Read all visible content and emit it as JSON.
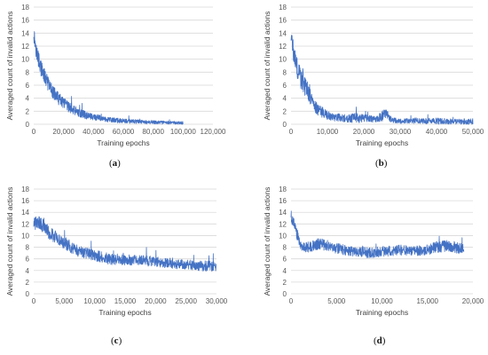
{
  "chart_data": [
    {
      "id": "a",
      "type": "line",
      "caption": "a",
      "xlabel": "Training epochs",
      "ylabel": "Averaged count of invalid actions",
      "xlim": [
        0,
        120000
      ],
      "ylim": [
        0,
        18
      ],
      "xticks": [
        "0",
        "20,000",
        "40,000",
        "60,000",
        "80,000",
        "100,000",
        "120,000"
      ],
      "yticks": [
        "0",
        "2",
        "4",
        "6",
        "8",
        "10",
        "12",
        "14",
        "16",
        "18"
      ],
      "grid": true,
      "color": "#4472c4",
      "series": [
        {
          "x": [
            0,
            2000,
            5000,
            10000,
            15000,
            20000,
            25000,
            30000,
            35000,
            40000,
            50000,
            60000,
            70000,
            80000,
            90000,
            100000
          ],
          "y": [
            14,
            11,
            8.5,
            6,
            4.3,
            3.2,
            2.4,
            1.8,
            1.4,
            1.1,
            0.7,
            0.5,
            0.4,
            0.3,
            0.25,
            0.2
          ],
          "noise": [
            1.3,
            1.3,
            1.2,
            1.1,
            1.0,
            0.9,
            0.8,
            0.7,
            0.6,
            0.5,
            0.4,
            0.35,
            0.3,
            0.3,
            0.25,
            0.25
          ]
        }
      ]
    },
    {
      "id": "b",
      "type": "line",
      "caption": "b",
      "xlabel": "Training epochs",
      "ylabel": "Averaged count of invalid actions",
      "xlim": [
        0,
        50000
      ],
      "ylim": [
        0,
        18
      ],
      "xticks": [
        "0",
        "10,000",
        "20,000",
        "30,000",
        "40,000",
        "50,000"
      ],
      "yticks": [
        "0",
        "2",
        "4",
        "6",
        "8",
        "10",
        "12",
        "14",
        "16",
        "18"
      ],
      "grid": true,
      "color": "#4472c4",
      "series": [
        {
          "x": [
            0,
            1000,
            2000,
            3000,
            5000,
            7000,
            10000,
            15000,
            18000,
            20000,
            23000,
            25000,
            26000,
            28000,
            30000,
            35000,
            40000,
            45000,
            50000
          ],
          "y": [
            13.5,
            10,
            8,
            7,
            4.5,
            2.5,
            1.3,
            0.9,
            1.0,
            0.9,
            0.8,
            1.2,
            1.5,
            0.6,
            0.5,
            0.5,
            0.5,
            0.4,
            0.4
          ],
          "noise": [
            1.5,
            1.5,
            1.5,
            2.0,
            1.2,
            1.0,
            0.7,
            0.6,
            0.8,
            0.6,
            0.5,
            0.8,
            0.9,
            0.4,
            0.4,
            0.4,
            0.5,
            0.4,
            0.5
          ]
        }
      ]
    },
    {
      "id": "c",
      "type": "line",
      "caption": "c",
      "xlabel": "Training epochs",
      "ylabel": "Averaged count of invalid actions",
      "xlim": [
        0,
        30000
      ],
      "ylim": [
        0,
        18
      ],
      "xticks": [
        "0",
        "5,000",
        "10,000",
        "15,000",
        "20,000",
        "25,000",
        "30,000"
      ],
      "yticks": [
        "0",
        "2",
        "4",
        "6",
        "8",
        "10",
        "12",
        "14",
        "16",
        "18"
      ],
      "grid": true,
      "color": "#4472c4",
      "series": [
        {
          "x": [
            0,
            1000,
            2500,
            5000,
            7500,
            10000,
            12500,
            15000,
            17500,
            20000,
            22500,
            25000,
            27500,
            30000
          ],
          "y": [
            12,
            12.3,
            10.5,
            8.8,
            7.2,
            6.6,
            6.0,
            5.8,
            5.8,
            5.5,
            5.3,
            5.0,
            4.8,
            4.7
          ],
          "noise": [
            1.2,
            1.2,
            1.1,
            1.1,
            1.0,
            1.0,
            1.0,
            0.9,
            0.9,
            0.9,
            0.9,
            0.9,
            0.9,
            0.9
          ]
        }
      ]
    },
    {
      "id": "d",
      "type": "line",
      "caption": "d",
      "xlabel": "Training epochs",
      "ylabel": "Averaged count of invalid actions",
      "xlim": [
        0,
        20000
      ],
      "ylim": [
        0,
        18
      ],
      "xticks": [
        "0",
        "5,000",
        "10,000",
        "15,000",
        "20,000"
      ],
      "yticks": [
        "0",
        "2",
        "4",
        "6",
        "8",
        "10",
        "12",
        "14",
        "16",
        "18"
      ],
      "grid": true,
      "color": "#4472c4",
      "series": [
        {
          "x": [
            0,
            300,
            700,
            1200,
            2000,
            3000,
            4000,
            5000,
            7000,
            9000,
            10000,
            12000,
            14000,
            15000,
            16000,
            17000,
            18000,
            19000
          ],
          "y": [
            13.5,
            12,
            10,
            8.2,
            8.0,
            8.6,
            8.4,
            7.8,
            7.2,
            7.0,
            7.3,
            7.5,
            7.4,
            7.6,
            8.0,
            8.2,
            8.0,
            7.6
          ],
          "noise": [
            1.0,
            1.0,
            1.1,
            1.0,
            0.9,
            1.0,
            1.0,
            0.9,
            0.9,
            0.9,
            0.9,
            0.9,
            0.9,
            0.9,
            1.0,
            1.0,
            1.0,
            0.9
          ]
        }
      ]
    }
  ]
}
